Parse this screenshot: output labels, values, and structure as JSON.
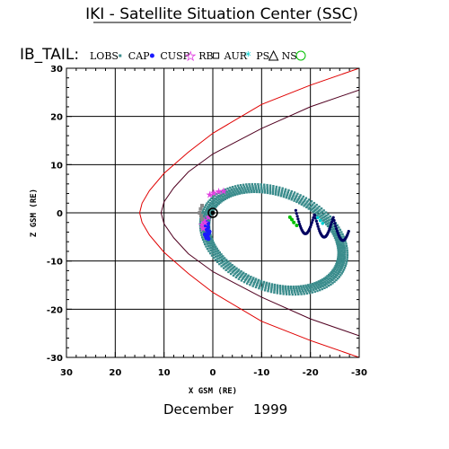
{
  "header": {
    "title": "IKI - Satellite Situation Center (SSC)"
  },
  "satellite": {
    "name": "IB_TAIL:"
  },
  "legend": {
    "items": [
      {
        "label": "LOBS",
        "marker": "small-square",
        "color": "#3a8c8c"
      },
      {
        "label": "CAP",
        "marker": "filled-circle",
        "color": "#1a1aff"
      },
      {
        "label": "CUSP",
        "marker": "star",
        "color": "#e040e0"
      },
      {
        "label": "RB",
        "marker": "open-square",
        "color": "#000000"
      },
      {
        "label": "AUR",
        "marker": "asterisk",
        "color": "#00d0d0"
      },
      {
        "label": "PS",
        "marker": "triangle",
        "color": "#000000"
      },
      {
        "label": "NS",
        "marker": "open-circle",
        "color": "#00c000"
      }
    ]
  },
  "footer": {
    "month": "December",
    "year": "1999"
  },
  "chart_data": {
    "type": "scatter",
    "title": "IKI - Satellite Situation Center (SSC)",
    "xlabel": "X GSM (RE)",
    "ylabel": "Z GSM (RE)",
    "xlim": [
      30,
      -30
    ],
    "ylim": [
      -30,
      30
    ],
    "x_reversed": true,
    "grid": true,
    "xticks": [
      "30",
      "20",
      "10",
      "0",
      "-10",
      "-20",
      "-30"
    ],
    "yticks": [
      "30",
      "20",
      "10",
      "0",
      "-10",
      "-20",
      "-30"
    ],
    "legend_position": "top",
    "colors": {
      "grid": "#000000",
      "bow_shock": "#e00000",
      "magnetopause": "#500020",
      "orbit": "#3a8c8c",
      "cap": "#1a1aff",
      "cusp": "#e040e0",
      "plasma_sheet": "#000060",
      "aurora": "#00d0d0",
      "neutral_sheet": "#00c000",
      "earth": "#000000"
    },
    "series": [
      {
        "kind": "curve",
        "x": [
          -30,
          -20,
          -10,
          0,
          5,
          10,
          13,
          14.5,
          15,
          14.5,
          13,
          10,
          5,
          0,
          -10,
          -20,
          -30
        ],
        "y": [
          -30,
          -26.5,
          -22.5,
          -16.5,
          -12.6,
          -8.2,
          -4.6,
          -2,
          0,
          2,
          4.6,
          8.2,
          12.6,
          16.5,
          22.5,
          26.5,
          30
        ]
      },
      {
        "kind": "curve",
        "x": [
          -30,
          -20,
          -10,
          0,
          5,
          8,
          10,
          10.6,
          10,
          8,
          5,
          0,
          -10,
          -20,
          -30
        ],
        "y": [
          -25.5,
          -22,
          -17.5,
          -12.2,
          -8.5,
          -5.2,
          -2.3,
          0,
          2.3,
          5.2,
          8.5,
          12.2,
          17.5,
          22,
          25.5
        ]
      },
      {
        "kind": "loop",
        "center": [
          -12.5,
          -5.5
        ],
        "a_values": [
          15.2,
          14.5,
          13.8,
          15.7,
          14.9,
          14.1
        ],
        "b_values": [
          10.2,
          9.6,
          9.0,
          10.6,
          9.9,
          9.3
        ],
        "rotation_deg": 22
      },
      {
        "kind": "points",
        "x": [
          1.4,
          1.2,
          1.0,
          1.3,
          0.8,
          1.6,
          1.1,
          0.9,
          1.5,
          1.2,
          0.7,
          1.4,
          1.0,
          1.3,
          0.9,
          1.6
        ],
        "y": [
          -2.0,
          -2.5,
          -3.0,
          -3.6,
          -4.1,
          -4.5,
          -5.0,
          -5.4,
          -2.8,
          -3.3,
          -3.9,
          -4.8,
          -2.2,
          -5.2,
          -4.4,
          -3.1
        ]
      },
      {
        "kind": "points",
        "x": [
          -1.2,
          -0.2,
          0.6,
          -2.2,
          0.9,
          1.8,
          2.2,
          2.0,
          1.6
        ],
        "y": [
          4.5,
          4.2,
          3.8,
          4.6,
          -0.8,
          -1.5,
          -2.4,
          -3.2,
          -2.0
        ]
      },
      {
        "kind": "points",
        "x": [
          -15.8,
          -16.2,
          -16.6,
          -17.2
        ],
        "y": [
          -0.9,
          -1.4,
          -2.0,
          -2.6
        ]
      },
      {
        "kind": "points",
        "x": [
          -21.5,
          -22.0,
          -22.5
        ],
        "y": [
          -1.0,
          -1.6,
          -2.2
        ]
      },
      {
        "kind": "points",
        "x": [
          2.2,
          2.5,
          2.7,
          2.4,
          2.2
        ],
        "y": [
          1.5,
          0.8,
          0.0,
          -0.6,
          -1.3
        ]
      },
      {
        "kind": "points",
        "x": [
          0
        ],
        "y": [
          0
        ]
      }
    ]
  }
}
